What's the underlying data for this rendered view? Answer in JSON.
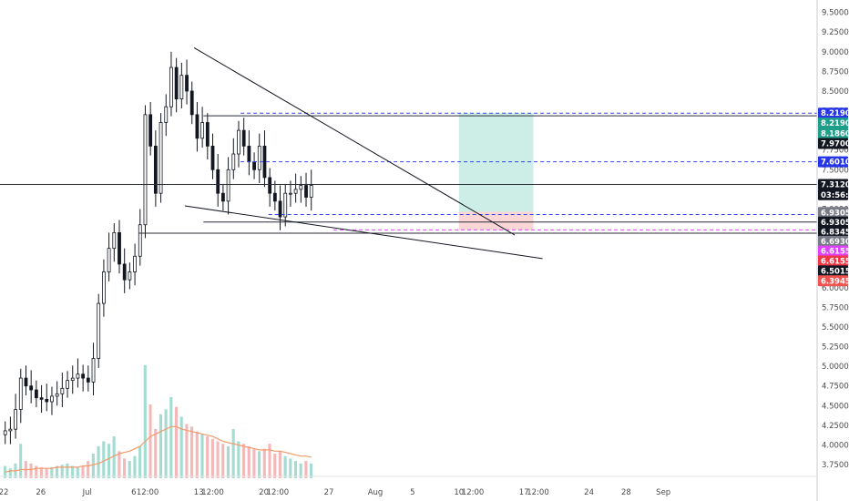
{
  "chart_data": {
    "type": "candlestick",
    "title": "",
    "xlabel": "",
    "ylabel": "",
    "ylim": [
      3.6,
      9.6
    ],
    "grid": false,
    "y_ticks": [
      "9.5000",
      "9.2500",
      "9.0000",
      "8.7500",
      "8.5000",
      "8.2500",
      "8.0000",
      "7.7500",
      "7.5000",
      "7.2500",
      "7.0000",
      "6.7500",
      "6.5000",
      "6.2500",
      "6.0000",
      "5.7500",
      "5.5000",
      "5.2500",
      "5.0000",
      "4.7500",
      "4.5000",
      "4.2500",
      "4.0000",
      "3.7500"
    ],
    "x_ticks": [
      {
        "label": "22",
        "day": 0
      },
      {
        "label": "26",
        "day": 4
      },
      {
        "label": "Jul",
        "day": 9
      },
      {
        "label": "6",
        "day": 14
      },
      {
        "label": "12:00",
        "day": 15.5
      },
      {
        "label": "13",
        "day": 21
      },
      {
        "label": "12:00",
        "day": 22.5
      },
      {
        "label": "20",
        "day": 28
      },
      {
        "label": "12:00",
        "day": 29.5
      },
      {
        "label": "27",
        "day": 35
      },
      {
        "label": "Aug",
        "day": 40
      },
      {
        "label": "5",
        "day": 44
      },
      {
        "label": "10",
        "day": 49
      },
      {
        "label": "12:00",
        "day": 50.5
      },
      {
        "label": "17",
        "day": 56
      },
      {
        "label": "12:00",
        "day": 57.5
      },
      {
        "label": "24",
        "day": 63
      },
      {
        "label": "28",
        "day": 67
      },
      {
        "label": "Sep",
        "day": 71
      }
    ],
    "price_closes": [
      4.18,
      4.2,
      4.45,
      4.85,
      4.75,
      4.7,
      4.6,
      4.58,
      4.55,
      4.62,
      4.65,
      4.72,
      4.82,
      4.85,
      4.9,
      4.85,
      4.8,
      5.1,
      5.8,
      6.2,
      6.5,
      6.7,
      6.3,
      6.1,
      6.2,
      6.4,
      6.8,
      8.2,
      7.8,
      7.2,
      8.1,
      8.3,
      8.8,
      8.4,
      8.7,
      8.5,
      8.2,
      7.9,
      8.1,
      7.8,
      7.5,
      7.2,
      7.1,
      7.5,
      7.7,
      8.0,
      7.8,
      7.6,
      7.5,
      7.8,
      7.4,
      7.2,
      7.1,
      6.9,
      7.2,
      7.2,
      7.25,
      7.3,
      7.15,
      7.3
    ],
    "volume": [
      10,
      8,
      12,
      28,
      14,
      12,
      10,
      9,
      8,
      9,
      10,
      11,
      12,
      10,
      9,
      10,
      14,
      20,
      26,
      30,
      28,
      34,
      22,
      16,
      14,
      18,
      26,
      92,
      60,
      40,
      52,
      56,
      66,
      58,
      50,
      44,
      42,
      38,
      36,
      34,
      32,
      30,
      28,
      26,
      40,
      30,
      28,
      26,
      24,
      22,
      24,
      28,
      20,
      22,
      18,
      16,
      14,
      12,
      14,
      12
    ],
    "volume_ma": [
      5,
      6,
      6,
      7,
      7,
      7,
      8,
      8,
      8,
      8,
      9,
      9,
      9,
      9,
      9,
      10,
      10,
      11,
      12,
      14,
      16,
      18,
      20,
      21,
      22,
      24,
      26,
      30,
      34,
      36,
      38,
      40,
      42,
      42,
      40,
      39,
      38,
      37,
      36,
      35,
      34,
      32,
      30,
      29,
      28,
      27,
      26,
      25,
      24,
      23,
      23,
      23,
      22,
      22,
      21,
      20,
      19,
      18,
      18,
      17
    ],
    "trendlines": [
      {
        "name": "upper-trendline",
        "from": {
          "day": 20.5,
          "price": 9.05
        },
        "to": {
          "day": 55.0,
          "price": 6.67
        }
      },
      {
        "name": "lower-trendline",
        "from": {
          "day": 19.5,
          "price": 7.04
        },
        "to": {
          "day": 58.0,
          "price": 6.37
        }
      }
    ],
    "horizontal_lines": [
      {
        "name": "resistance-7.312",
        "price": 7.312,
        "from_day": -1,
        "to_day": 74,
        "color": "#2a2e39",
        "dash": false
      },
      {
        "name": "level-8.186",
        "price": 8.186,
        "from_day": 21.5,
        "to_day": 74,
        "color": "#2a2e39",
        "dash": false
      },
      {
        "name": "level-6.834",
        "price": 6.8345,
        "from_day": 21.5,
        "to_day": 74,
        "color": "#2a2e39",
        "dash": false
      },
      {
        "name": "level-6.693",
        "price": 6.693,
        "from_day": 14.5,
        "to_day": 74,
        "color": "#2a2e39",
        "dash": false
      },
      {
        "name": "target-8.219",
        "price": 8.219,
        "from_day": 25.5,
        "to_day": 74,
        "color": "#3344ee",
        "dash": true
      },
      {
        "name": "entry-7.601",
        "price": 7.601,
        "from_day": 25.5,
        "to_day": 74,
        "color": "#3344ee",
        "dash": true
      },
      {
        "name": "level-6.93",
        "price": 6.9305,
        "from_day": 28.5,
        "to_day": 74,
        "color": "#3344ee",
        "dash": true
      },
      {
        "name": "stop-6.734",
        "price": 6.734,
        "from_day": 35.5,
        "to_day": 74,
        "color": "#e040fb",
        "dash": true
      }
    ],
    "position": {
      "entry_price": 6.965,
      "target_price": 8.219,
      "stop_price": 6.734,
      "from_day": 49.0,
      "to_day": 57.0,
      "profit_color": "#cdeee6",
      "loss_color": "#fad6d6"
    },
    "price_badges": [
      {
        "label": "8.2190",
        "price": 8.219,
        "bg": "#2636e6"
      },
      {
        "label": "8.2190",
        "price": 8.093,
        "bg": "#1f9e8a"
      },
      {
        "label": "8.1860",
        "price": 7.963,
        "bg": "#1f9e8a"
      },
      {
        "label": "7.9700",
        "price": 7.833,
        "bg": "#131722"
      },
      {
        "label": "7.6010",
        "price": 7.601,
        "bg": "#2636e6"
      },
      {
        "label": "7.3120",
        "price": 7.312,
        "bg": "#131722"
      },
      {
        "label": "03:56:16",
        "price": 7.182,
        "bg": "#131722"
      },
      {
        "label": "6.9305",
        "price": 6.956,
        "bg": "#787b86"
      },
      {
        "label": "6.9305",
        "price": 6.834,
        "bg": "#131722"
      },
      {
        "label": "6.8345",
        "price": 6.712,
        "bg": "#131722"
      },
      {
        "label": "6.6930",
        "price": 6.59,
        "bg": "#787b86"
      },
      {
        "label": "6.6155",
        "price": 6.465,
        "bg": "#e040fb"
      },
      {
        "label": "6.6155",
        "price": 6.339,
        "bg": "#f23645"
      },
      {
        "label": "6.5015",
        "price": 6.213,
        "bg": "#131722"
      },
      {
        "label": "6.3945",
        "price": 6.087,
        "bg": "#ef5350"
      }
    ]
  }
}
